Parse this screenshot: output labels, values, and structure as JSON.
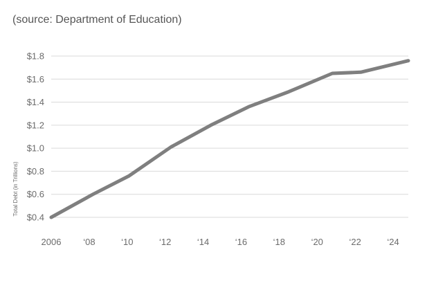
{
  "header": {
    "source_note": "(source: Department of Education)"
  },
  "chart_data": {
    "type": "line",
    "ylabel": "Total Debt (in Trillions)",
    "xlabel": "",
    "ylim": [
      0.4,
      1.8
    ],
    "xlim": [
      2006,
      2024.8
    ],
    "yticks": [
      {
        "value": 0.4,
        "label": "$0.4"
      },
      {
        "value": 0.6,
        "label": "$0.6"
      },
      {
        "value": 0.8,
        "label": "$0.8"
      },
      {
        "value": 1.0,
        "label": "$1.0"
      },
      {
        "value": 1.2,
        "label": "$1.2"
      },
      {
        "value": 1.4,
        "label": "$1.4"
      },
      {
        "value": 1.6,
        "label": "$1.6"
      },
      {
        "value": 1.8,
        "label": "$1.8"
      }
    ],
    "xticks": [
      {
        "value": 2006,
        "label": "2006"
      },
      {
        "value": 2008,
        "label": "‘08"
      },
      {
        "value": 2010,
        "label": "‘10"
      },
      {
        "value": 2012,
        "label": "‘12"
      },
      {
        "value": 2014,
        "label": "‘14"
      },
      {
        "value": 2016,
        "label": "‘16"
      },
      {
        "value": 2018,
        "label": "‘18"
      },
      {
        "value": 2020,
        "label": "‘20"
      },
      {
        "value": 2022,
        "label": "‘22"
      },
      {
        "value": 2024,
        "label": "‘24"
      }
    ],
    "grid": "horizontal",
    "series": [
      {
        "color": "#7f7f7f",
        "points": [
          {
            "x": 2006.0,
            "y": 0.4
          },
          {
            "x": 2008.2,
            "y": 0.6
          },
          {
            "x": 2010.1,
            "y": 0.76
          },
          {
            "x": 2012.3,
            "y": 1.01
          },
          {
            "x": 2014.4,
            "y": 1.2
          },
          {
            "x": 2016.4,
            "y": 1.36
          },
          {
            "x": 2018.5,
            "y": 1.49
          },
          {
            "x": 2020.8,
            "y": 1.65
          },
          {
            "x": 2022.3,
            "y": 1.66
          },
          {
            "x": 2024.8,
            "y": 1.76
          }
        ]
      }
    ],
    "colors": {
      "line": "#7f7f7f",
      "grid": "#d9d9d9",
      "text": "#6b6b6b"
    }
  }
}
